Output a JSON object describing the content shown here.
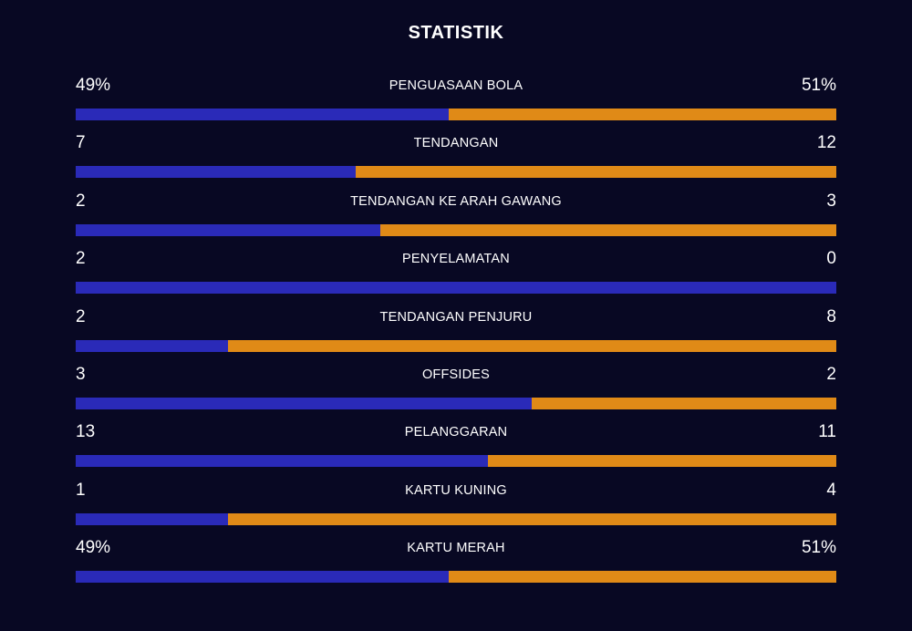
{
  "title": "STATISTIK",
  "colors": {
    "background": "#080823",
    "home": "#2a2ab8",
    "away": "#e08a17"
  },
  "stats": [
    {
      "label": "PENGUASAAN BOLA",
      "left": "49%",
      "right": "51%",
      "left_share": 0.49
    },
    {
      "label": "TENDANGAN",
      "left": "7",
      "right": "12",
      "left_share": 0.368
    },
    {
      "label": "TENDANGAN KE ARAH GAWANG",
      "left": "2",
      "right": "3",
      "left_share": 0.4
    },
    {
      "label": "PENYELAMATAN",
      "left": "2",
      "right": "0",
      "left_share": 1.0
    },
    {
      "label": "TENDANGAN PENJURU",
      "left": "2",
      "right": "8",
      "left_share": 0.2
    },
    {
      "label": "OFFSIDES",
      "left": "3",
      "right": "2",
      "left_share": 0.6
    },
    {
      "label": "PELANGGARAN",
      "left": "13",
      "right": "11",
      "left_share": 0.542
    },
    {
      "label": "KARTU KUNING",
      "left": "1",
      "right": "4",
      "left_share": 0.2
    },
    {
      "label": "KARTU MERAH",
      "left": "49%",
      "right": "51%",
      "left_share": 0.49
    }
  ]
}
